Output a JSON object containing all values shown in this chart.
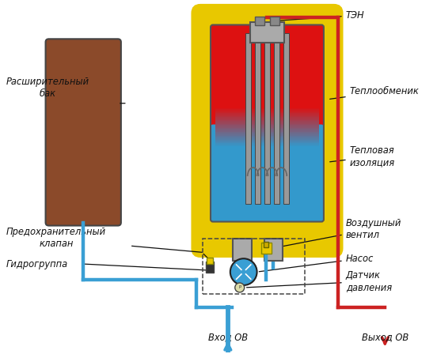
{
  "bg_color": "#ffffff",
  "labels": {
    "ten": "ТЭН",
    "teploobm": "Теплообменик",
    "teplov_izol": "Тепловая\nизоляция",
    "vozdush": "Воздушный\nвентил",
    "nasos": "Насос",
    "datchik": "Датчик\nдавления",
    "rasshir": "Расширительный\nбак",
    "predokhr": "Предохранительный\nклапан",
    "gidrogr": "Гидрогруппа",
    "vkhod": "Вход ОВ",
    "vykhod": "Выход ОВ"
  },
  "colors": {
    "red_pipe": "#cc2222",
    "blue_pipe": "#3a9fd4",
    "yellow_jacket": "#e8c800",
    "tank_brown": "#8B4A2A",
    "red_fluid": "#dd1111",
    "blue_fluid": "#3399cc",
    "gray_port": "#999999",
    "gray_tube": "#888888",
    "yellow_valve": "#e8c800",
    "white": "#ffffff",
    "black": "#000000",
    "dark": "#222222"
  }
}
